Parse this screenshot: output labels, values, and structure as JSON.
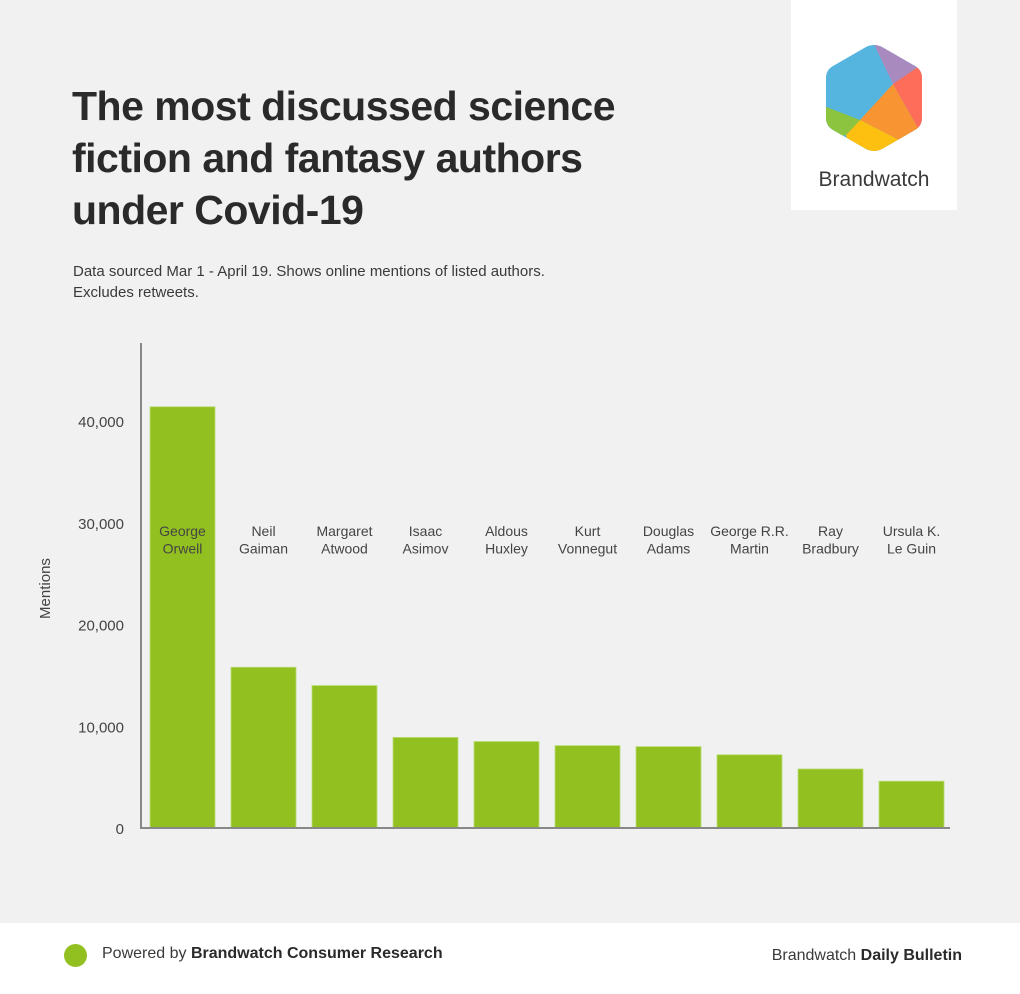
{
  "header": {
    "title_lines": [
      "The most discussed science",
      "fiction and fantasy authors",
      "under Covid-19"
    ],
    "subtitle_lines": [
      "Data sourced Mar 1 - April 19. Shows online mentions of listed authors.",
      "Excludes retweets."
    ]
  },
  "logo": {
    "name": "Brandwatch",
    "icon": "brandwatch-hexagon-logo",
    "colors": [
      "#55b5de",
      "#a98abf",
      "#fe6d5a",
      "#f89532",
      "#fdbf10",
      "#8cc43f"
    ]
  },
  "footer": {
    "powered_prefix": "Powered by",
    "powered_brand": "Brandwatch Consumer Research",
    "right_prefix": "Brandwatch",
    "right_bold": "Daily Bulletin",
    "dot_color": "#93c021"
  },
  "chart_data": {
    "type": "bar",
    "title": "The most discussed science fiction and fantasy authors under Covid-19",
    "xlabel": "",
    "ylabel": "Mentions",
    "ylim": [
      0,
      47000
    ],
    "yticks": [
      0,
      10000,
      20000,
      30000,
      40000
    ],
    "ytick_labels": [
      "0",
      "10,000",
      "20,000",
      "30,000",
      "40,000"
    ],
    "grid": false,
    "legend": "none",
    "bar_color": "#93c021",
    "categories": [
      [
        "George",
        "Orwell"
      ],
      [
        "Neil",
        "Gaiman"
      ],
      [
        "Margaret",
        "Atwood"
      ],
      [
        "Isaac",
        "Asimov"
      ],
      [
        "Aldous",
        "Huxley"
      ],
      [
        "Kurt",
        "Vonnegut"
      ],
      [
        "Douglas",
        "Adams"
      ],
      [
        "George R.R.",
        "Martin"
      ],
      [
        "Ray",
        "Bradbury"
      ],
      [
        "Ursula K.",
        "Le Guin"
      ]
    ],
    "values": [
      41400,
      15800,
      14000,
      8900,
      8500,
      8100,
      8000,
      7200,
      5800,
      4600
    ]
  }
}
